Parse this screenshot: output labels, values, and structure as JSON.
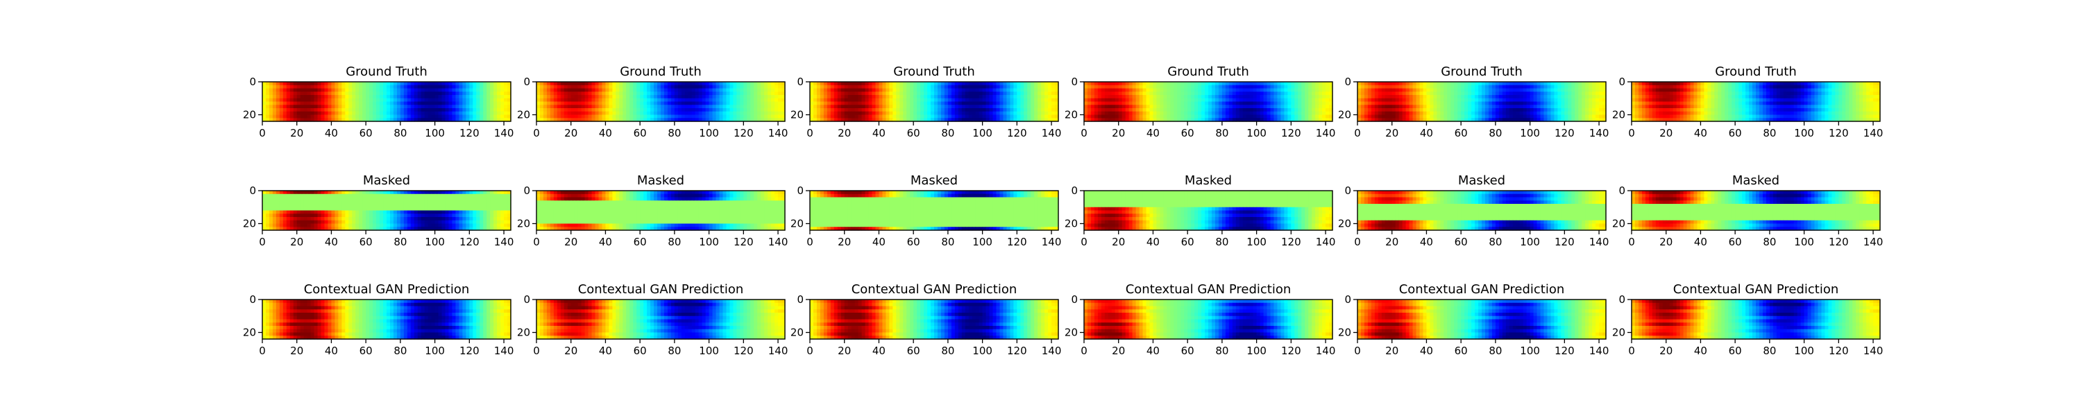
{
  "figure": {
    "rows": [
      {
        "title": "Ground Truth",
        "kind": "truth"
      },
      {
        "title": "Masked",
        "kind": "masked"
      },
      {
        "title": "Contextual GAN Prediction",
        "kind": "prediction"
      }
    ],
    "columns": 6
  },
  "chart_data": {
    "type": "heatmap",
    "colormap": "jet",
    "grid": false,
    "value_range": [
      -1,
      1
    ],
    "xlim": [
      0,
      144
    ],
    "ylim": [
      24,
      0
    ],
    "x_ticks": [
      0,
      20,
      40,
      60,
      80,
      100,
      120,
      140
    ],
    "y_ticks": [
      0,
      20
    ],
    "columns": [
      {
        "x_peak": 25,
        "x_trough": 98,
        "profile": "uniform",
        "mask_rows": [
          3,
          12
        ]
      },
      {
        "x_peak": 22,
        "x_trough": 88,
        "profile": "top",
        "mask_rows": [
          6,
          19
        ]
      },
      {
        "x_peak": 25,
        "x_trough": 95,
        "profile": "uniform",
        "mask_rows": [
          4,
          21
        ]
      },
      {
        "x_peak": 15,
        "x_trough": 95,
        "profile": "bottom",
        "mask_rows": [
          0,
          9
        ]
      },
      {
        "x_peak": 18,
        "x_trough": 92,
        "profile": "bottom",
        "mask_rows": [
          8,
          18
        ]
      },
      {
        "x_peak": 20,
        "x_trough": 90,
        "profile": "top",
        "mask_rows": [
          8,
          17
        ]
      }
    ]
  }
}
